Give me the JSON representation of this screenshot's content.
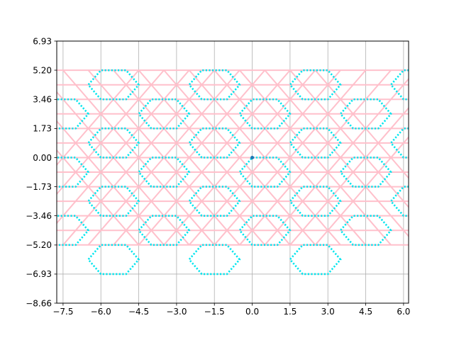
{
  "chart_data": {
    "type": "line",
    "title": "",
    "xlabel": "",
    "ylabel": "",
    "xlim": [
      -7.75,
      6.2
    ],
    "ylim": [
      -8.66,
      6.93
    ],
    "grid": true,
    "legend": "none",
    "x_ticks": [
      -7.5,
      -6.0,
      -4.5,
      -3.0,
      -1.5,
      0.0,
      1.5,
      3.0,
      4.5,
      6.0
    ],
    "x_tick_labels": [
      "−7.5",
      "−6.0",
      "−4.5",
      "−3.0",
      "−1.5",
      "0.0",
      "1.5",
      "3.0",
      "4.5",
      "6.0"
    ],
    "y_ticks": [
      -8.66,
      -6.93,
      -5.2,
      -3.46,
      -1.73,
      0.0,
      1.73,
      3.46,
      5.2,
      6.93
    ],
    "y_tick_labels": [
      "−8.66",
      "−6.93",
      "−5.20",
      "−3.46",
      "−1.73",
      "0.00",
      "1.73",
      "3.46",
      "5.20",
      "6.93"
    ],
    "series": [
      {
        "style": "triangular lattice (solid lines)",
        "color": "#ffc0cb",
        "horizontal_lines_y": [
          -5.196,
          -4.33,
          -3.464,
          -2.598,
          -1.732,
          -0.866,
          0.0,
          0.866,
          1.732,
          2.598,
          3.464,
          4.33,
          5.196
        ],
        "diagonal_slope": 1.732,
        "diagonal_x_offsets": [
          -7.5,
          -6.5,
          -5.5,
          -4.5,
          -3.5,
          -2.5,
          -1.5,
          -0.5,
          0.5,
          1.5,
          2.5,
          3.5,
          4.5,
          5.5
        ]
      },
      {
        "style": "hexagonal tiling (dotted lines)",
        "color": "#00e5ee",
        "hexagon_side": 1.0,
        "centers": [
          [
            -7.5,
            2.598
          ],
          [
            -7.5,
            -0.866
          ],
          [
            -7.5,
            -4.33
          ],
          [
            -5.5,
            4.33
          ],
          [
            -5.5,
            0.866
          ],
          [
            -5.5,
            -2.598
          ],
          [
            -5.5,
            -6.062
          ],
          [
            -3.5,
            2.598
          ],
          [
            -3.5,
            -0.866
          ],
          [
            -3.5,
            -4.33
          ],
          [
            -1.5,
            4.33
          ],
          [
            -1.5,
            0.866
          ],
          [
            -1.5,
            -2.598
          ],
          [
            -1.5,
            -6.062
          ],
          [
            0.5,
            2.598
          ],
          [
            0.5,
            -0.866
          ],
          [
            0.5,
            -4.33
          ],
          [
            2.5,
            4.33
          ],
          [
            2.5,
            0.866
          ],
          [
            2.5,
            -2.598
          ],
          [
            2.5,
            -6.062
          ],
          [
            4.5,
            2.598
          ],
          [
            4.5,
            -0.866
          ],
          [
            4.5,
            -4.33
          ],
          [
            6.5,
            4.33
          ],
          [
            6.5,
            0.866
          ],
          [
            6.5,
            -2.598
          ]
        ]
      },
      {
        "style": "marker",
        "color": "#1f77b4",
        "points": [
          [
            0.0,
            0.0
          ]
        ]
      }
    ]
  }
}
